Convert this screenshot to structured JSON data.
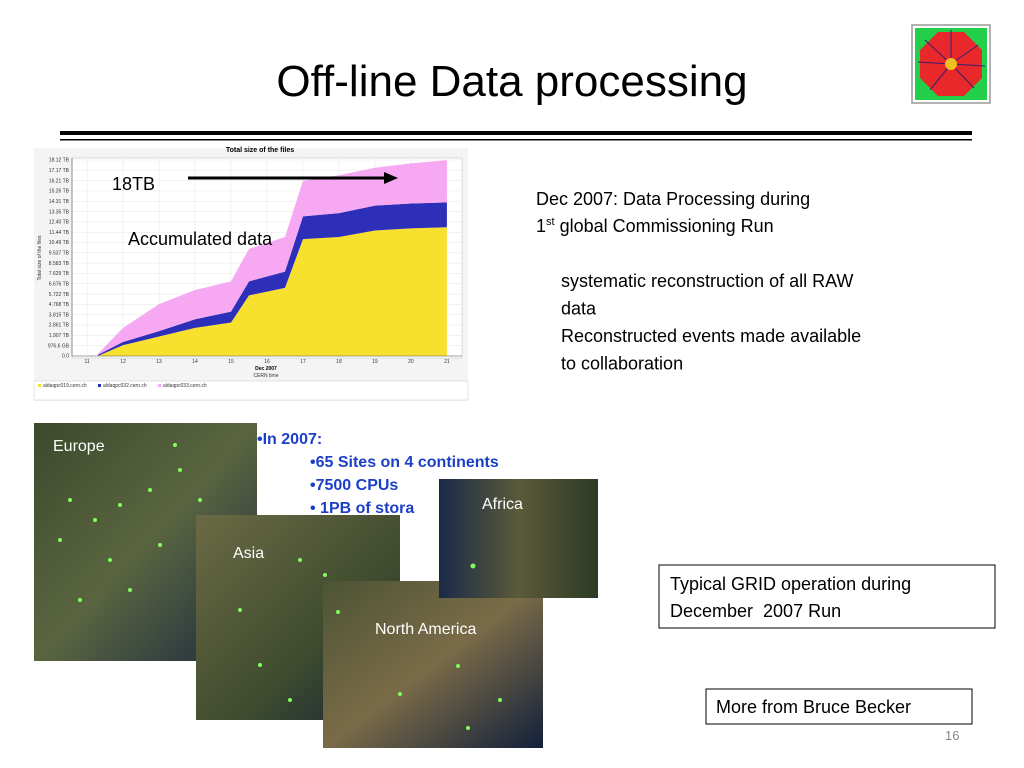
{
  "slide": {
    "title": "Off-line Data processing",
    "page_number": "16"
  },
  "chart_data": {
    "type": "area",
    "stacked": true,
    "title": "Total size of the files",
    "ylabel": "Total size of the files",
    "xlabel": "Dec 2007",
    "xlabel_note": "CERN time",
    "x": [
      11.3,
      12,
      13,
      14,
      15,
      15.5,
      16.5,
      17,
      18,
      19,
      20,
      21
    ],
    "series": [
      {
        "name": "aldaqpc019.cern.ch",
        "color": "#f7e12e",
        "values": [
          0,
          1.0,
          1.8,
          2.6,
          3.1,
          5.6,
          6.3,
          10.8,
          11.0,
          11.6,
          11.8,
          11.9
        ]
      },
      {
        "name": "aldaqpc032.cern.ch",
        "color": "#2d2fb8",
        "values": [
          0.1,
          0.3,
          0.5,
          0.8,
          1.0,
          1.3,
          1.5,
          2.1,
          2.2,
          2.3,
          2.3,
          2.3
        ]
      },
      {
        "name": "aldaqpc033.cern.ch",
        "color": "#f7a8f2",
        "values": [
          0.1,
          1.3,
          2.5,
          2.7,
          2.8,
          3.0,
          3.2,
          3.3,
          3.5,
          3.5,
          3.7,
          3.9
        ]
      }
    ],
    "xlim": [
      10.58,
      21.42
    ],
    "xticks": [
      11,
      12,
      13,
      14,
      15,
      16,
      17,
      18,
      19,
      20,
      21
    ],
    "ylim": [
      0,
      18.3
    ],
    "yticks": [
      {
        "value": 0,
        "label": "0.0"
      },
      {
        "value": 0.9537,
        "label": "976.6 GB"
      },
      {
        "value": 1.907,
        "label": "1.907 TB"
      },
      {
        "value": 2.861,
        "label": "2.861 TB"
      },
      {
        "value": 3.815,
        "label": "3.815 TB"
      },
      {
        "value": 4.768,
        "label": "4.768 TB"
      },
      {
        "value": 5.722,
        "label": "5.722 TB"
      },
      {
        "value": 6.676,
        "label": "6.676 TB"
      },
      {
        "value": 7.629,
        "label": "7.629 TB"
      },
      {
        "value": 8.583,
        "label": "8.583 TB"
      },
      {
        "value": 9.537,
        "label": "9.537 TB"
      },
      {
        "value": 10.49,
        "label": "10.49 TB"
      },
      {
        "value": 11.44,
        "label": "11.44 TB"
      },
      {
        "value": 12.4,
        "label": "12.40 TB"
      },
      {
        "value": 13.35,
        "label": "13.35 TB"
      },
      {
        "value": 14.31,
        "label": "14.31 TB"
      },
      {
        "value": 15.26,
        "label": "15.26 TB"
      },
      {
        "value": 16.21,
        "label": "16.21 TB"
      },
      {
        "value": 17.17,
        "label": "17.17 TB"
      },
      {
        "value": 18.12,
        "label": "18.12 TB"
      }
    ],
    "grid": true,
    "legend": "bottom"
  },
  "annotations": {
    "peak_label": "18TB",
    "area_label": "Accumulated data"
  },
  "description": {
    "heading_line1": "Dec 2007: Data Processing during",
    "ordinal": "1",
    "ordinal_suffix": "st",
    "heading_rest": "global Commissioning Run",
    "points": [
      "systematic reconstruction of all RAW",
      "data",
      "Reconstructed events made available",
      "to collaboration"
    ]
  },
  "grid_stats": {
    "heading": "•In 2007:",
    "items": [
      "•65 Sites on 4 continents",
      "•7500 CPUs",
      "• 1PB of stora"
    ]
  },
  "maps": [
    "Europe",
    "Asia",
    "North America",
    "Africa"
  ],
  "note_box": [
    "Typical GRID operation during",
    "December  2007 Run"
  ],
  "link_box": "More from Bruce Becker"
}
